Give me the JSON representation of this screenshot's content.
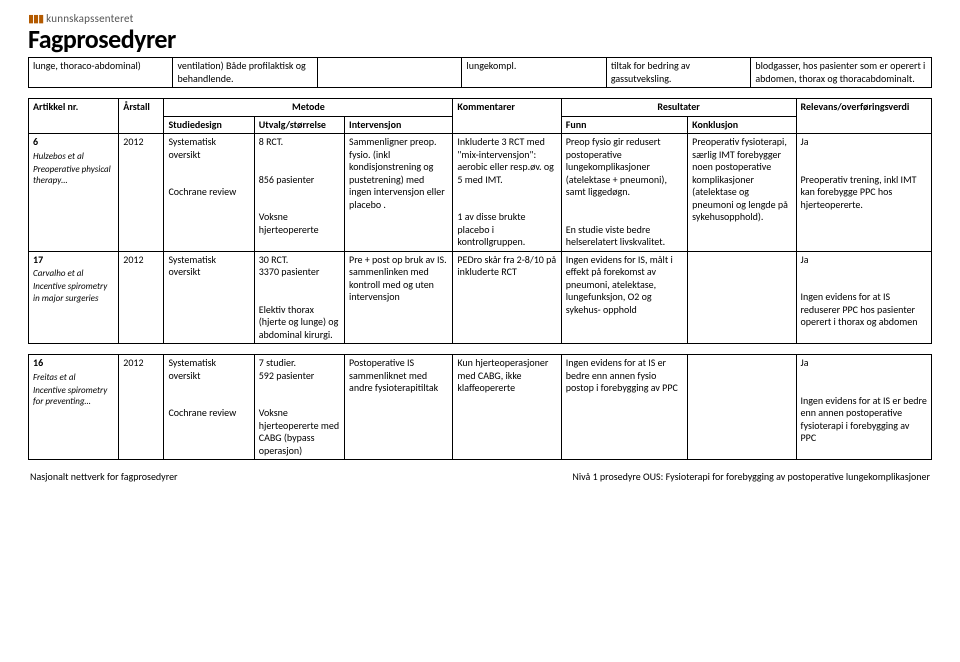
{
  "brand": {
    "top_label": "kunnskapssenteret",
    "title": "Fagprosedyrer"
  },
  "top_fragment": {
    "cells": [
      "lunge, thoraco-abdominal)",
      "ventilation) Både profilaktisk og behandlende.",
      "",
      "lungekompl.",
      "tiltak for bedring av gassutveksling.",
      "blodgasser, hos pasienter som er operert i abdomen, thorax og thoracabdominalt."
    ]
  },
  "main_table": {
    "group_headers": {
      "method": "Metode",
      "results": "Resultater"
    },
    "headers": [
      "Artikkel nr.",
      "Årstall",
      "Studiedesign",
      "Utvalg/størrelse",
      "Intervensjon",
      "Kommentarer",
      "Funn",
      "Konklusjon",
      "Relevans/overføringsverdi"
    ],
    "rows": [
      {
        "article_num": "6",
        "article_authors": "Hulzebos et al",
        "article_title": "Preoperative physical therapy…",
        "year": "2012",
        "design": "Systematisk oversikt\n\nCochrane review",
        "sample": "8 RCT.\n\n856 pasienter\n\nVoksne hjerteopererte",
        "intervention": "Sammenligner preop. fysio. (inkl kondisjonstrening og pustetrening) med ingen intervensjon eller placebo .",
        "comments": "Inkluderte 3 RCT med \"mix-intervensjon\": aerobic eller resp.øv. og 5 med IMT.\n\n1 av disse brukte placebo i kontrollgruppen.",
        "findings": "Preop fysio gir redusert postoperative lungekomplikasjoner (atelektase + pneumoni), samt liggedøgn.\n\nEn studie viste bedre helserelatert livskvalitet.",
        "conclusion": "Preoperativ fysioterapi, særlig IMT forebygger noen postoperative komplikasjoner (atelektase og pneumoni og lengde på sykehusopphold).",
        "relevance": "Ja\n\nPreoperativ trening, inkl IMT kan forebygge PPC hos hjerteopererte."
      },
      {
        "article_num": "17",
        "article_authors": "Carvalho et al",
        "article_title": "Incentive spirometry in major surgeries",
        "year": "2012",
        "design": "Systematisk oversikt",
        "sample": "30 RCT.\n3370 pasienter\n\nElektiv thorax (hjerte og lunge) og abdominal kirurgi.",
        "intervention": "Pre + post op bruk av IS. sammenlinken med kontroll med og uten intervensjon",
        "comments": "PEDro skår fra 2-8/10 på inkluderte RCT",
        "findings": "Ingen evidens for IS, målt i effekt på forekomst av pneumoni, atelektase, lungefunksjon, O2 og sykehus- opphold",
        "conclusion": "",
        "relevance": "Ja\n\nIngen evidens for at IS reduserer PPC hos pasienter operert i thorax og abdomen"
      }
    ]
  },
  "second_table": {
    "rows": [
      {
        "article_num": "16",
        "article_authors": "Freitas et al",
        "article_title": "Incentive spirometry for preventing…",
        "year": "2012",
        "design": "Systematisk oversikt\n\nCochrane review",
        "sample": "7 studier.\n592 pasienter\n\nVoksne hjerteopererte med CABG (bypass operasjon)",
        "intervention": "Postoperative IS sammenliknet med andre fysioterapitiltak",
        "comments": "Kun hjerteoperasjoner med CABG, ikke klaffeopererte",
        "findings": "Ingen evidens for at IS er bedre enn annen fysio postop i forebygging av PPC",
        "conclusion": "",
        "relevance": "Ja\n\nIngen evidens for at IS er bedre enn annen postoperative fysioterapi i forebygging av PPC"
      }
    ]
  },
  "footer": {
    "left": "Nasjonalt nettverk for fagprosedyrer",
    "right": "Nivå 1 prosedyre OUS: Fysioterapi for forebygging av postoperative lungekomplikasjoner"
  }
}
